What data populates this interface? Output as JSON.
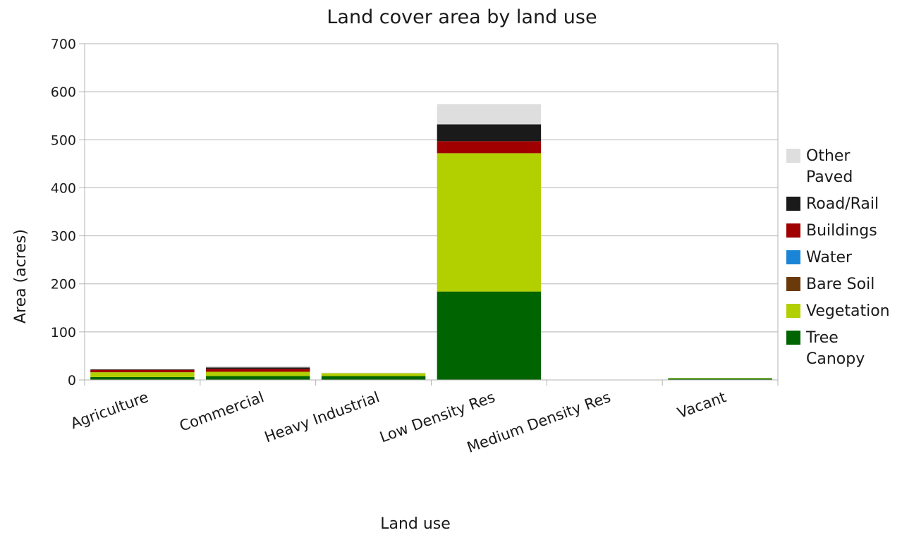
{
  "chart_data": {
    "type": "bar",
    "stacked": true,
    "title": "Land cover area by land use",
    "xlabel": "Land use",
    "ylabel": "Area (acres)",
    "ylim": [
      0,
      700
    ],
    "yticks": [
      "0",
      "100",
      "200",
      "300",
      "400",
      "500",
      "600",
      "700"
    ],
    "grid": true,
    "legend_position": "right",
    "categories": [
      "Agriculture",
      "Commercial",
      "Heavy Industrial",
      "Low Density Res",
      "Medium Density Res",
      "Vacant"
    ],
    "series": [
      {
        "name": "Tree Canopy",
        "color": "#006400",
        "values": [
          6,
          8,
          8,
          184,
          0,
          3
        ]
      },
      {
        "name": "Vegetation",
        "color": "#b2cf00",
        "values": [
          10,
          9,
          6,
          288,
          0,
          1
        ]
      },
      {
        "name": "Bare Soil",
        "color": "#6b3a0a",
        "values": [
          0,
          0,
          0,
          0,
          0,
          0
        ]
      },
      {
        "name": "Water",
        "color": "#1a85d6",
        "values": [
          0,
          0,
          0,
          0,
          0,
          0
        ]
      },
      {
        "name": "Buildings",
        "color": "#a00000",
        "values": [
          5,
          6,
          0,
          25,
          0,
          0
        ]
      },
      {
        "name": "Road/Rail",
        "color": "#1a1a1a",
        "values": [
          1,
          3,
          0,
          35,
          0,
          0
        ]
      },
      {
        "name": "Other Paved",
        "color": "#dedede",
        "values": [
          0,
          3,
          1,
          42,
          0,
          0
        ]
      }
    ],
    "legend_order": [
      "Other Paved",
      "Road/Rail",
      "Buildings",
      "Water",
      "Bare Soil",
      "Vegetation",
      "Tree Canopy"
    ]
  }
}
